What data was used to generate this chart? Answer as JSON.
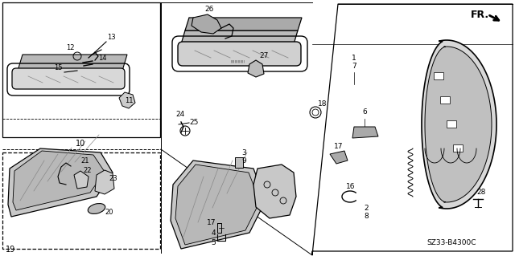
{
  "background_color": "#ffffff",
  "fig_width": 6.4,
  "fig_height": 3.19,
  "dpi": 100,
  "fr_text": "FR.",
  "catalog_text": "SZ33-B4300C"
}
